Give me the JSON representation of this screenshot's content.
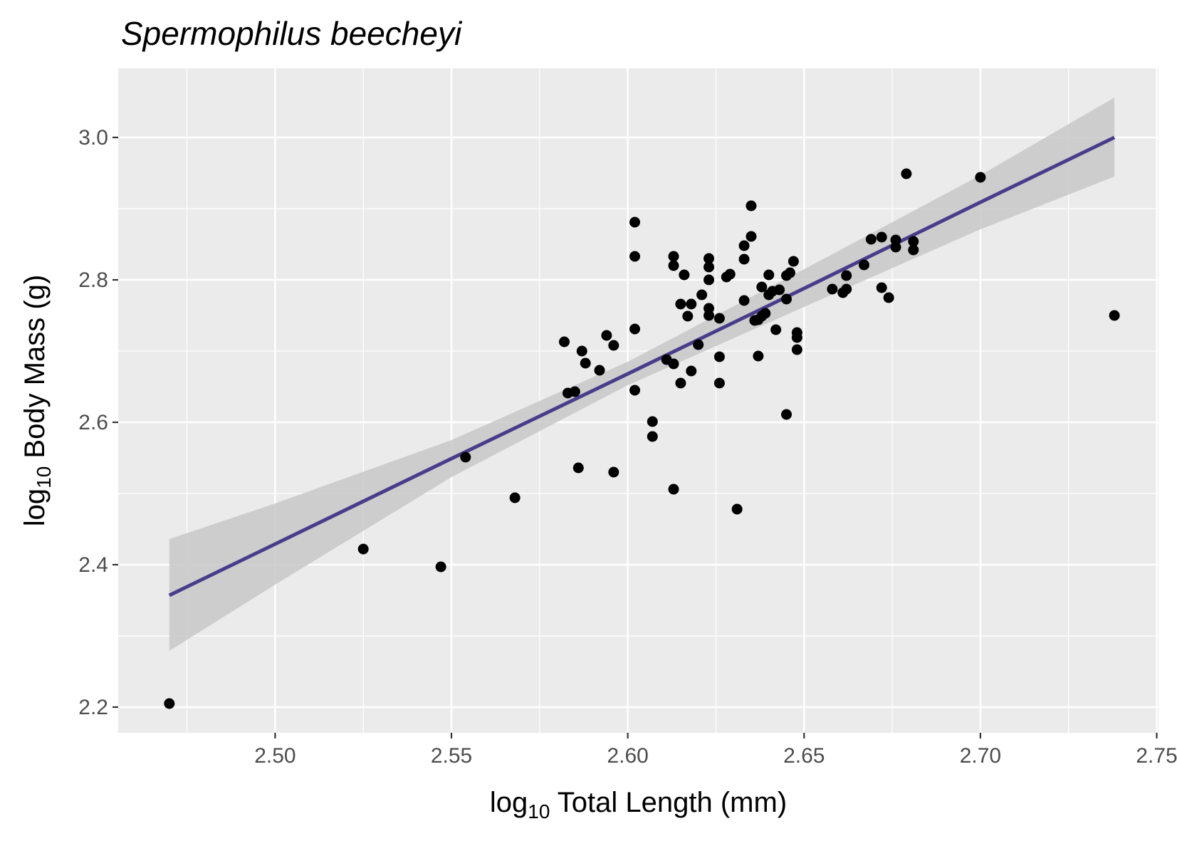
{
  "chart_data": {
    "type": "scatter",
    "title": "Spermophilus beecheyi",
    "xlabel": {
      "prefix": "log",
      "sub": "10",
      "text": " Total Length (mm)"
    },
    "ylabel": {
      "prefix": "log",
      "sub": "10",
      "text": " Body Mass (g)"
    },
    "xlim": [
      2.4555,
      2.7505
    ],
    "ylim": [
      2.164,
      3.097
    ],
    "x_ticks": [
      2.5,
      2.55,
      2.6,
      2.65,
      2.7,
      2.75
    ],
    "x_tick_labels": [
      "2.50",
      "2.55",
      "2.60",
      "2.65",
      "2.70",
      "2.75"
    ],
    "y_ticks": [
      2.2,
      2.4,
      2.6,
      2.8,
      3.0
    ],
    "y_tick_labels": [
      "2.2",
      "2.4",
      "2.6",
      "2.8",
      "3.0"
    ],
    "grid": true,
    "colors": {
      "panel": "#ebebeb",
      "grid": "#ffffff",
      "points": "#000000",
      "fit_line": "#483d8b",
      "ribbon": "#c8c8c8"
    },
    "fit": {
      "x": [
        2.47,
        2.5,
        2.55,
        2.6,
        2.65,
        2.7,
        2.738
      ],
      "y": [
        2.357,
        2.429,
        2.549,
        2.668,
        2.788,
        2.909,
        3.0
      ],
      "lower": [
        2.279,
        2.372,
        2.523,
        2.652,
        2.762,
        2.871,
        2.945
      ],
      "upper": [
        2.436,
        2.486,
        2.575,
        2.685,
        2.815,
        2.947,
        3.056
      ]
    },
    "points": [
      {
        "x": 2.47,
        "y": 2.205
      },
      {
        "x": 2.525,
        "y": 2.422
      },
      {
        "x": 2.547,
        "y": 2.397
      },
      {
        "x": 2.554,
        "y": 2.551
      },
      {
        "x": 2.568,
        "y": 2.494
      },
      {
        "x": 2.582,
        "y": 2.713
      },
      {
        "x": 2.583,
        "y": 2.641
      },
      {
        "x": 2.585,
        "y": 2.643
      },
      {
        "x": 2.586,
        "y": 2.536
      },
      {
        "x": 2.587,
        "y": 2.7
      },
      {
        "x": 2.588,
        "y": 2.683
      },
      {
        "x": 2.592,
        "y": 2.673
      },
      {
        "x": 2.594,
        "y": 2.722
      },
      {
        "x": 2.596,
        "y": 2.53
      },
      {
        "x": 2.596,
        "y": 2.708
      },
      {
        "x": 2.602,
        "y": 2.881
      },
      {
        "x": 2.602,
        "y": 2.833
      },
      {
        "x": 2.602,
        "y": 2.731
      },
      {
        "x": 2.602,
        "y": 2.645
      },
      {
        "x": 2.607,
        "y": 2.601
      },
      {
        "x": 2.607,
        "y": 2.58
      },
      {
        "x": 2.611,
        "y": 2.688
      },
      {
        "x": 2.613,
        "y": 2.833
      },
      {
        "x": 2.613,
        "y": 2.82
      },
      {
        "x": 2.613,
        "y": 2.682
      },
      {
        "x": 2.613,
        "y": 2.506
      },
      {
        "x": 2.615,
        "y": 2.766
      },
      {
        "x": 2.615,
        "y": 2.655
      },
      {
        "x": 2.616,
        "y": 2.807
      },
      {
        "x": 2.617,
        "y": 2.749
      },
      {
        "x": 2.618,
        "y": 2.766
      },
      {
        "x": 2.618,
        "y": 2.672
      },
      {
        "x": 2.62,
        "y": 2.709
      },
      {
        "x": 2.621,
        "y": 2.779
      },
      {
        "x": 2.623,
        "y": 2.83
      },
      {
        "x": 2.623,
        "y": 2.818
      },
      {
        "x": 2.623,
        "y": 2.8
      },
      {
        "x": 2.623,
        "y": 2.76
      },
      {
        "x": 2.623,
        "y": 2.75
      },
      {
        "x": 2.626,
        "y": 2.746
      },
      {
        "x": 2.626,
        "y": 2.692
      },
      {
        "x": 2.626,
        "y": 2.655
      },
      {
        "x": 2.628,
        "y": 2.804
      },
      {
        "x": 2.629,
        "y": 2.808
      },
      {
        "x": 2.631,
        "y": 2.478
      },
      {
        "x": 2.633,
        "y": 2.848
      },
      {
        "x": 2.633,
        "y": 2.829
      },
      {
        "x": 2.633,
        "y": 2.771
      },
      {
        "x": 2.635,
        "y": 2.904
      },
      {
        "x": 2.635,
        "y": 2.861
      },
      {
        "x": 2.636,
        "y": 2.743
      },
      {
        "x": 2.637,
        "y": 2.693
      },
      {
        "x": 2.637,
        "y": 2.744
      },
      {
        "x": 2.638,
        "y": 2.749
      },
      {
        "x": 2.638,
        "y": 2.79
      },
      {
        "x": 2.639,
        "y": 2.753
      },
      {
        "x": 2.64,
        "y": 2.779
      },
      {
        "x": 2.64,
        "y": 2.807
      },
      {
        "x": 2.641,
        "y": 2.784
      },
      {
        "x": 2.642,
        "y": 2.73
      },
      {
        "x": 2.643,
        "y": 2.786
      },
      {
        "x": 2.645,
        "y": 2.806
      },
      {
        "x": 2.645,
        "y": 2.773
      },
      {
        "x": 2.645,
        "y": 2.611
      },
      {
        "x": 2.646,
        "y": 2.81
      },
      {
        "x": 2.647,
        "y": 2.826
      },
      {
        "x": 2.648,
        "y": 2.726
      },
      {
        "x": 2.648,
        "y": 2.719
      },
      {
        "x": 2.648,
        "y": 2.702
      },
      {
        "x": 2.658,
        "y": 2.787
      },
      {
        "x": 2.661,
        "y": 2.782
      },
      {
        "x": 2.662,
        "y": 2.806
      },
      {
        "x": 2.662,
        "y": 2.787
      },
      {
        "x": 2.667,
        "y": 2.821
      },
      {
        "x": 2.669,
        "y": 2.857
      },
      {
        "x": 2.672,
        "y": 2.86
      },
      {
        "x": 2.672,
        "y": 2.789
      },
      {
        "x": 2.674,
        "y": 2.775
      },
      {
        "x": 2.676,
        "y": 2.856
      },
      {
        "x": 2.676,
        "y": 2.846
      },
      {
        "x": 2.679,
        "y": 2.949
      },
      {
        "x": 2.681,
        "y": 2.854
      },
      {
        "x": 2.681,
        "y": 2.842
      },
      {
        "x": 2.7,
        "y": 2.944
      },
      {
        "x": 2.738,
        "y": 2.75
      }
    ]
  }
}
